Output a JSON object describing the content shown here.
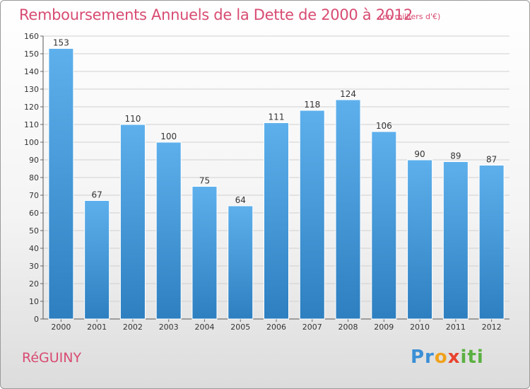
{
  "header": {
    "title": "Remboursements Annuels de la Dette de 2000 à 2012",
    "unit": "(en milliers d'€)"
  },
  "footer": {
    "commune": "RéGUINY",
    "logo": "Proxiti"
  },
  "colors": {
    "title": "#d84b72",
    "bar_top": "#5eb0ec",
    "bar_bottom": "#2d7fc0",
    "grid": "#d0d0d0"
  },
  "chart_data": {
    "type": "bar",
    "categories": [
      "2000",
      "2001",
      "2002",
      "2003",
      "2004",
      "2005",
      "2006",
      "2007",
      "2008",
      "2009",
      "2010",
      "2011",
      "2012"
    ],
    "values": [
      153,
      67,
      110,
      100,
      75,
      64,
      111,
      118,
      124,
      106,
      90,
      89,
      87
    ],
    "ylim": [
      0,
      160
    ],
    "yticks": [
      0,
      10,
      20,
      30,
      40,
      50,
      60,
      70,
      80,
      90,
      100,
      110,
      120,
      130,
      140,
      150,
      160
    ],
    "grid": true,
    "data_labels": true
  }
}
